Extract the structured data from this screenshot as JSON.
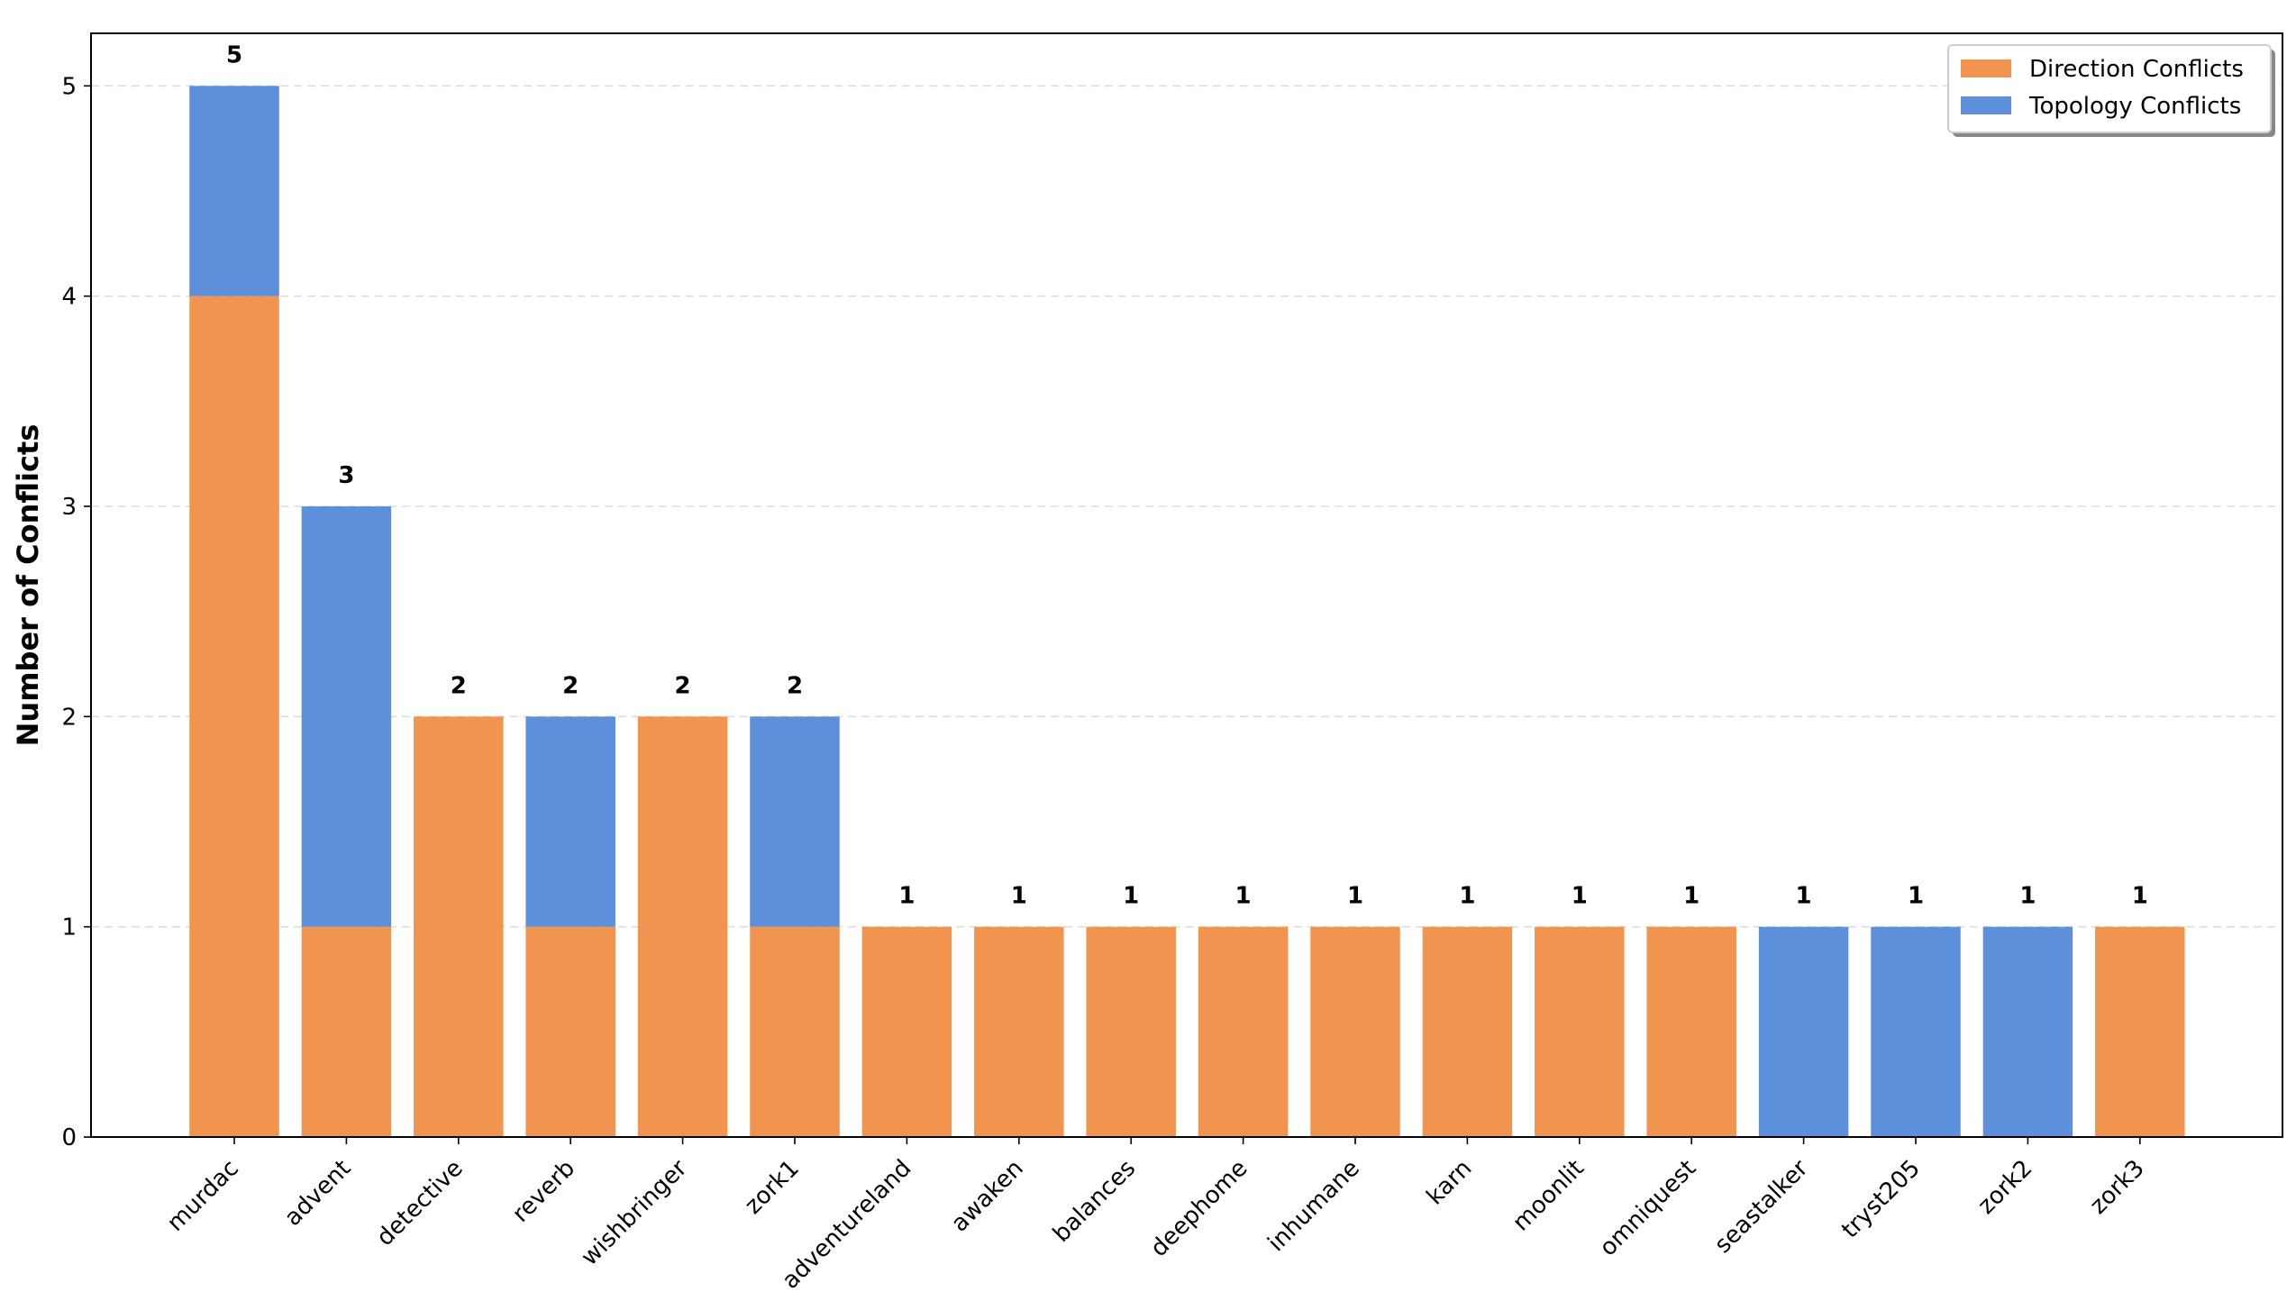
{
  "chart_data": {
    "type": "bar",
    "stacked": true,
    "title": "",
    "xlabel": "",
    "ylabel": "Number of Conflicts",
    "categories": [
      "murdac",
      "advent",
      "detective",
      "reverb",
      "wishbringer",
      "zork1",
      "adventureland",
      "awaken",
      "balances",
      "deephome",
      "inhumane",
      "karn",
      "moonlit",
      "omniquest",
      "seastalker",
      "tryst205",
      "zork2",
      "zork3"
    ],
    "series": [
      {
        "name": "Direction Conflicts",
        "color": "#F0944F",
        "values": [
          4,
          1,
          2,
          1,
          2,
          1,
          1,
          1,
          1,
          1,
          1,
          1,
          1,
          1,
          0,
          0,
          0,
          1
        ]
      },
      {
        "name": "Topology Conflicts",
        "color": "#5E8FDB",
        "values": [
          1,
          2,
          0,
          1,
          0,
          1,
          0,
          0,
          0,
          0,
          0,
          0,
          0,
          0,
          1,
          1,
          1,
          0
        ]
      }
    ],
    "totals": [
      "5",
      "3",
      "2",
      "2",
      "2",
      "2",
      "1",
      "1",
      "1",
      "1",
      "1",
      "1",
      "1",
      "1",
      "1",
      "1",
      "1",
      "1"
    ],
    "ylim": [
      0,
      5.25
    ],
    "yticks": [
      "0",
      "1",
      "2",
      "3",
      "4",
      "5"
    ],
    "grid": "y-dashed",
    "legend_position": "top-right"
  }
}
